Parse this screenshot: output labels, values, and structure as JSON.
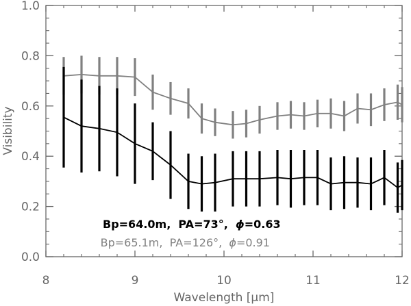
{
  "chart_data": {
    "type": "line",
    "xlabel": "Wavelength [μm]",
    "ylabel": "Visibility",
    "xlim": [
      8,
      12
    ],
    "ylim": [
      0,
      1.0
    ],
    "xticks": [
      "8",
      "9",
      "10",
      "11",
      "12"
    ],
    "yticks": [
      "0.0",
      "0.2",
      "0.4",
      "0.6",
      "0.8",
      "1.0"
    ],
    "grid": false,
    "legend_placement": "bottom-left",
    "series": [
      {
        "name": "Bp=64.0m, PA=73°, ϕ=0.63",
        "color": "#000000",
        "x": [
          8.2,
          8.4,
          8.6,
          8.8,
          9.0,
          9.2,
          9.4,
          9.6,
          9.75,
          9.9,
          10.1,
          10.25,
          10.4,
          10.6,
          10.75,
          10.9,
          11.05,
          11.2,
          11.35,
          11.5,
          11.65,
          11.8,
          11.95,
          12.0
        ],
        "y": [
          0.555,
          0.52,
          0.51,
          0.495,
          0.45,
          0.42,
          0.365,
          0.3,
          0.29,
          0.295,
          0.31,
          0.31,
          0.31,
          0.315,
          0.31,
          0.315,
          0.315,
          0.29,
          0.295,
          0.295,
          0.29,
          0.315,
          0.275,
          0.285
        ],
        "err": [
          0.2,
          0.185,
          0.17,
          0.175,
          0.16,
          0.115,
          0.135,
          0.11,
          0.11,
          0.115,
          0.11,
          0.11,
          0.11,
          0.11,
          0.115,
          0.11,
          0.11,
          0.105,
          0.105,
          0.1,
          0.105,
          0.11,
          0.1,
          0.1
        ]
      },
      {
        "name": "Bp=65.1m, PA=126°, ϕ=0.91",
        "color": "#808080",
        "x": [
          8.2,
          8.4,
          8.6,
          8.8,
          9.0,
          9.2,
          9.4,
          9.6,
          9.75,
          9.9,
          10.1,
          10.25,
          10.4,
          10.6,
          10.75,
          10.9,
          11.05,
          11.2,
          11.35,
          11.5,
          11.65,
          11.8,
          11.95,
          12.0
        ],
        "y": [
          0.72,
          0.725,
          0.72,
          0.72,
          0.715,
          0.655,
          0.63,
          0.61,
          0.55,
          0.535,
          0.525,
          0.53,
          0.545,
          0.56,
          0.565,
          0.56,
          0.57,
          0.57,
          0.56,
          0.59,
          0.585,
          0.605,
          0.615,
          0.605
        ],
        "err": [
          0.075,
          0.075,
          0.075,
          0.075,
          0.075,
          0.07,
          0.065,
          0.06,
          0.06,
          0.055,
          0.055,
          0.055,
          0.055,
          0.055,
          0.055,
          0.055,
          0.055,
          0.06,
          0.06,
          0.06,
          0.065,
          0.065,
          0.07,
          0.07
        ]
      }
    ]
  },
  "legend": {
    "line1": {
      "prefix": "Bp=64.0m,  PA=73°,  ",
      "phi": "ϕ",
      "value": "=0.63",
      "color": "#000000"
    },
    "line2": {
      "prefix": "Bp=65.1m,  PA=126°,  ",
      "phi": "ϕ",
      "value": "=0.91",
      "color": "#808080"
    }
  }
}
